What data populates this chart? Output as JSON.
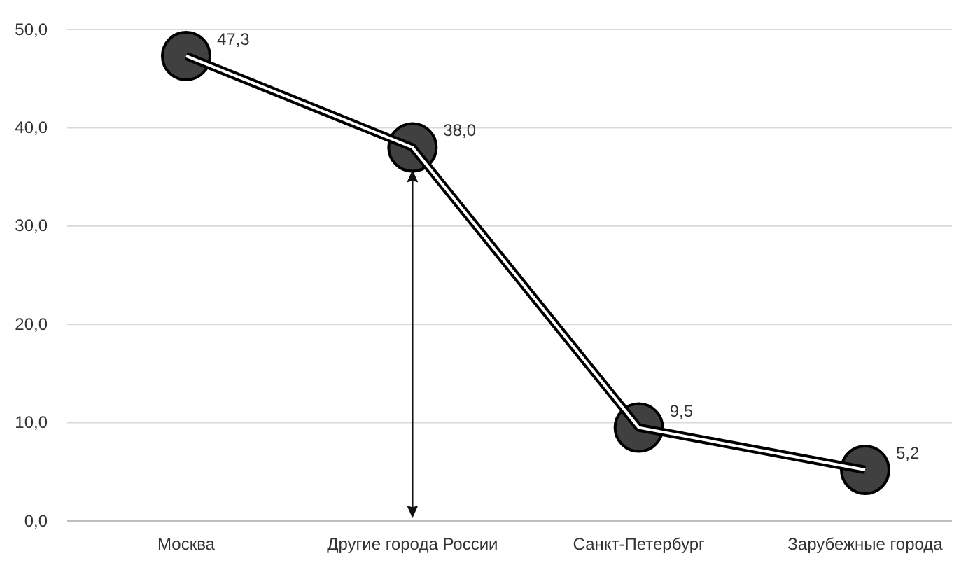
{
  "chart_data": {
    "type": "line",
    "categories": [
      "Москва",
      "Другие города России",
      "Санкт-Петербург",
      "Зарубежные города"
    ],
    "series": [
      {
        "color": "#000000",
        "values": [
          47.3,
          38.0,
          9.5,
          5.2
        ],
        "value_labels": [
          "47,3",
          "38,0",
          "9,5",
          "5,2"
        ]
      }
    ],
    "ylim": [
      0,
      50
    ],
    "yticks": [
      {
        "value": 0,
        "label": "0,0"
      },
      {
        "value": 10,
        "label": "10,0"
      },
      {
        "value": 20,
        "label": "20,0"
      },
      {
        "value": 30,
        "label": "30,0"
      },
      {
        "value": 40,
        "label": "40,0"
      },
      {
        "value": 50,
        "label": "50,0"
      }
    ],
    "grid": "y",
    "marker": "circle",
    "line_style": "solid"
  }
}
